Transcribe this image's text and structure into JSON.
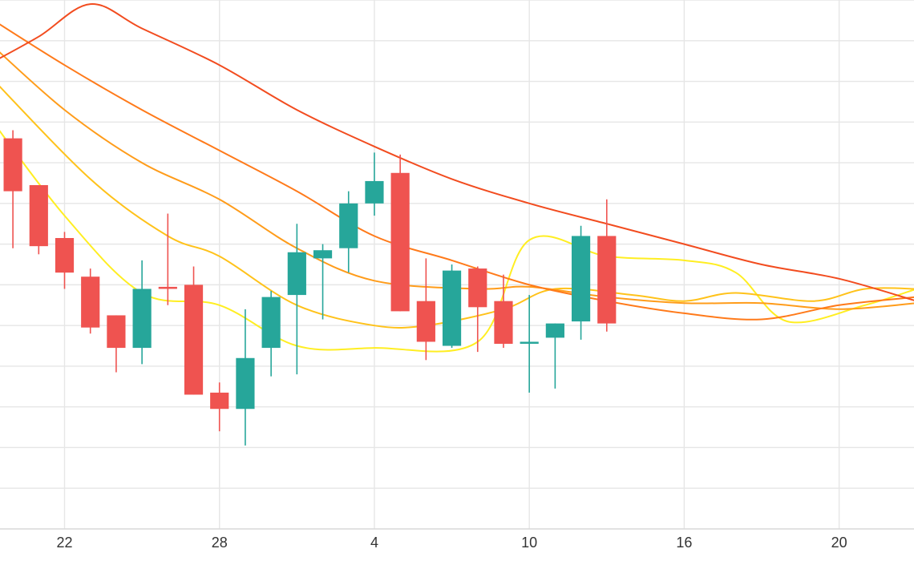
{
  "chart_data": {
    "type": "candlestick",
    "title": "",
    "xlabel": "",
    "ylabel": "",
    "up_color": "#26a69a",
    "down_color": "#ef5350",
    "grid": true,
    "legend": "none",
    "x_ticks": [
      {
        "day": 2,
        "label": "22"
      },
      {
        "day": 8,
        "label": "28"
      },
      {
        "day": 14,
        "label": "4"
      },
      {
        "day": 20,
        "label": "10"
      },
      {
        "day": 26,
        "label": "16"
      },
      {
        "day": 32,
        "label": "20"
      }
    ],
    "x_range": [
      -0.5,
      34.9
    ],
    "y_range": [
      0,
      13
    ],
    "candles": [
      {
        "day": 0,
        "open": 9.6,
        "close": 8.3,
        "high": 9.8,
        "low": 6.9
      },
      {
        "day": 1,
        "open": 8.45,
        "close": 6.95,
        "high": 8.45,
        "low": 6.75
      },
      {
        "day": 2,
        "open": 7.15,
        "close": 6.3,
        "high": 7.3,
        "low": 5.9
      },
      {
        "day": 3,
        "open": 6.2,
        "close": 4.95,
        "high": 6.4,
        "low": 4.8
      },
      {
        "day": 4,
        "open": 5.25,
        "close": 4.45,
        "high": 5.25,
        "low": 3.85
      },
      {
        "day": 5,
        "open": 4.45,
        "close": 5.9,
        "high": 6.6,
        "low": 4.05
      },
      {
        "day": 6,
        "open": 5.95,
        "close": 5.9,
        "high": 7.75,
        "low": 5.5
      },
      {
        "day": 7,
        "open": 6.0,
        "close": 3.3,
        "high": 6.45,
        "low": 3.3
      },
      {
        "day": 8,
        "open": 3.35,
        "close": 2.95,
        "high": 3.6,
        "low": 2.4
      },
      {
        "day": 9,
        "open": 2.95,
        "close": 4.2,
        "high": 5.4,
        "low": 2.05
      },
      {
        "day": 10,
        "open": 4.45,
        "close": 5.7,
        "high": 5.85,
        "low": 3.75
      },
      {
        "day": 11,
        "open": 5.75,
        "close": 6.8,
        "high": 7.5,
        "low": 3.8
      },
      {
        "day": 12,
        "open": 6.65,
        "close": 6.85,
        "high": 7.0,
        "low": 5.15
      },
      {
        "day": 13,
        "open": 6.9,
        "close": 8.0,
        "high": 8.3,
        "low": 6.3
      },
      {
        "day": 14,
        "open": 8.0,
        "close": 8.55,
        "high": 9.25,
        "low": 7.7
      },
      {
        "day": 15,
        "open": 8.75,
        "close": 5.35,
        "high": 9.2,
        "low": 5.35
      },
      {
        "day": 16,
        "open": 5.6,
        "close": 4.6,
        "high": 6.65,
        "low": 4.15
      },
      {
        "day": 17,
        "open": 4.5,
        "close": 6.35,
        "high": 6.5,
        "low": 4.45
      },
      {
        "day": 18,
        "open": 6.4,
        "close": 5.45,
        "high": 6.45,
        "low": 4.35
      },
      {
        "day": 19,
        "open": 5.6,
        "close": 4.55,
        "high": 6.25,
        "low": 4.45
      },
      {
        "day": 20,
        "open": 4.6,
        "close": 4.6,
        "high": 5.75,
        "low": 3.35
      },
      {
        "day": 21,
        "open": 4.7,
        "close": 5.05,
        "high": 5.05,
        "low": 3.45
      },
      {
        "day": 22,
        "open": 5.1,
        "close": 7.2,
        "high": 7.45,
        "low": 4.65
      },
      {
        "day": 23,
        "open": 7.2,
        "close": 5.05,
        "high": 8.1,
        "low": 4.85
      }
    ],
    "series": [
      {
        "color": "#ffee22",
        "points": [
          [
            -1,
            10.2
          ],
          [
            2,
            7.7
          ],
          [
            5,
            5.8
          ],
          [
            8,
            5.5
          ],
          [
            11,
            4.5
          ],
          [
            14,
            4.45
          ],
          [
            18,
            4.6
          ],
          [
            20,
            7.1
          ],
          [
            23,
            6.7
          ],
          [
            26,
            6.6
          ],
          [
            28,
            6.3
          ],
          [
            30,
            5.1
          ],
          [
            33,
            5.5
          ],
          [
            35,
            5.9
          ]
        ]
      },
      {
        "color": "#ffc21a",
        "points": [
          [
            -1,
            11.2
          ],
          [
            3,
            8.6
          ],
          [
            6,
            7.2
          ],
          [
            8,
            6.7
          ],
          [
            11,
            5.5
          ],
          [
            14,
            5.0
          ],
          [
            16,
            5.0
          ],
          [
            19,
            5.4
          ],
          [
            21,
            5.9
          ],
          [
            24,
            5.75
          ],
          [
            26,
            5.6
          ],
          [
            28,
            5.8
          ],
          [
            31,
            5.6
          ],
          [
            33,
            5.9
          ],
          [
            35,
            5.9
          ]
        ]
      },
      {
        "color": "#ff9c1a",
        "points": [
          [
            -1,
            12.0
          ],
          [
            2,
            10.3
          ],
          [
            5,
            9.0
          ],
          [
            8,
            8.1
          ],
          [
            11,
            6.9
          ],
          [
            14,
            6.1
          ],
          [
            18,
            5.9
          ],
          [
            20,
            5.95
          ],
          [
            23,
            5.7
          ],
          [
            26,
            5.55
          ],
          [
            29,
            5.55
          ],
          [
            32,
            5.4
          ],
          [
            35,
            5.55
          ]
        ]
      },
      {
        "color": "#ff7a1a",
        "points": [
          [
            -1,
            12.6
          ],
          [
            2,
            11.4
          ],
          [
            5,
            10.3
          ],
          [
            8,
            9.3
          ],
          [
            11,
            8.3
          ],
          [
            14,
            7.2
          ],
          [
            17,
            6.6
          ],
          [
            20,
            6.0
          ],
          [
            23,
            5.6
          ],
          [
            26,
            5.3
          ],
          [
            29,
            5.15
          ],
          [
            32,
            5.5
          ],
          [
            35,
            5.7
          ]
        ]
      },
      {
        "color": "#f24c1f",
        "points": [
          [
            -1,
            11.4
          ],
          [
            1,
            12.1
          ],
          [
            3,
            12.9
          ],
          [
            5,
            12.3
          ],
          [
            8,
            11.4
          ],
          [
            11,
            10.3
          ],
          [
            14,
            9.4
          ],
          [
            17,
            8.6
          ],
          [
            20,
            8.0
          ],
          [
            23,
            7.5
          ],
          [
            26,
            7.0
          ],
          [
            29,
            6.5
          ],
          [
            32,
            6.15
          ],
          [
            35,
            5.6
          ]
        ]
      }
    ]
  }
}
